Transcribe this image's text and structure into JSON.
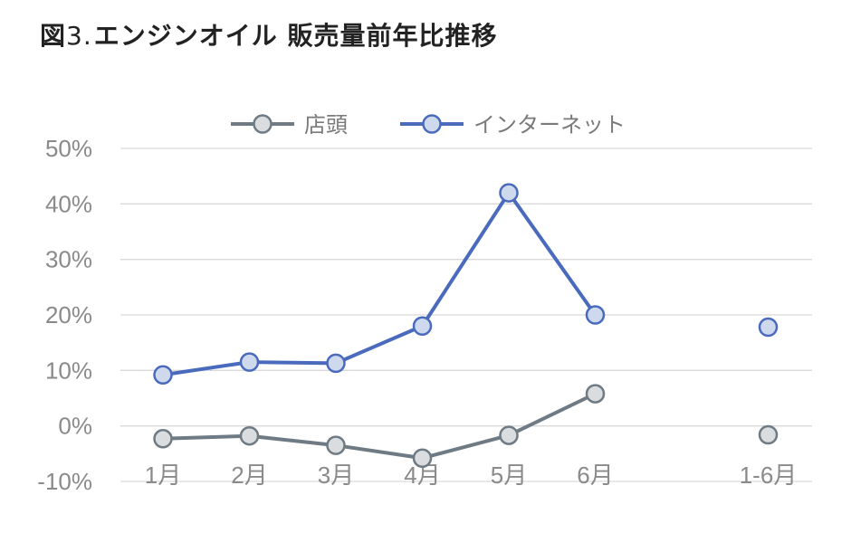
{
  "title": {
    "prefix": "図",
    "number": "3.",
    "text": "エンジンオイル 販売量前年比推移"
  },
  "chart_data": {
    "type": "line",
    "y_ticks": [
      "50%",
      "40%",
      "30%",
      "20%",
      "10%",
      "0%",
      "-10%"
    ],
    "y_tick_values": [
      50,
      40,
      30,
      20,
      10,
      0,
      -10
    ],
    "ylim": [
      -10,
      50
    ],
    "grid": true,
    "legend_position": "top",
    "categories": [
      "1月",
      "2月",
      "3月",
      "4月",
      "5月",
      "6月",
      "",
      "1-6月"
    ],
    "series": [
      {
        "name": "店頭",
        "color": "#6f7b84",
        "values": [
          -2.3,
          -1.8,
          -3.5,
          -5.8,
          -1.7,
          5.8,
          null,
          -1.6
        ]
      },
      {
        "name": "インターネット",
        "color": "#4a6bbd",
        "values": [
          9.2,
          11.5,
          11.3,
          18.0,
          42.0,
          20.0,
          null,
          17.8
        ]
      }
    ]
  }
}
